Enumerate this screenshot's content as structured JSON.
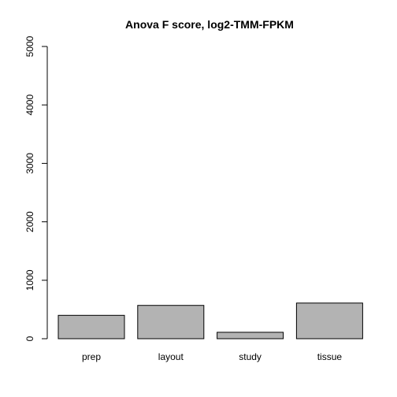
{
  "chart_data": {
    "type": "bar",
    "title": "Anova F score, log2-TMM-FPKM",
    "xlabel": "",
    "ylabel": "",
    "categories": [
      "prep",
      "layout",
      "study",
      "tissue"
    ],
    "values": [
      400,
      570,
      110,
      610
    ],
    "ylim": [
      0,
      5000
    ],
    "yticks": [
      0,
      1000,
      2000,
      3000,
      4000,
      5000
    ],
    "bar_color": "#b3b3b3",
    "grid": false,
    "legend": "none"
  }
}
